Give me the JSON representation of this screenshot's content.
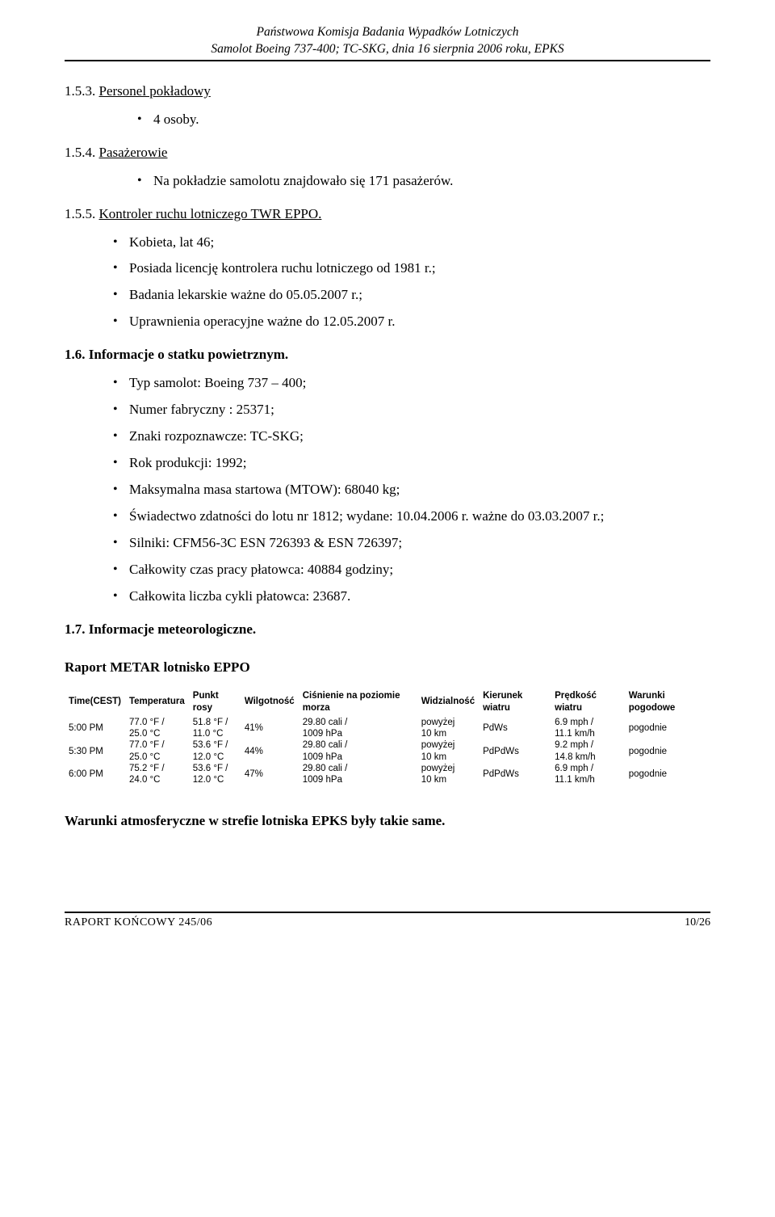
{
  "header": {
    "org": "Państwowa Komisja Badania Wypadków Lotniczych",
    "sub": "Samolot Boeing 737-400; TC-SKG, dnia 16 sierpnia 2006 roku, EPKS"
  },
  "sections": {
    "s153": {
      "num": "1.5.3.",
      "title": "Personel pokładowy",
      "items": [
        "4 osoby."
      ]
    },
    "s154": {
      "num": "1.5.4.",
      "title": "Pasażerowie",
      "items": [
        "Na pokładzie samolotu znajdowało się 171 pasażerów."
      ]
    },
    "s155": {
      "num": "1.5.5.",
      "title": "Kontroler ruchu lotniczego TWR EPPO.",
      "items": [
        "Kobieta, lat 46;",
        "Posiada licencję kontrolera ruchu lotniczego od 1981 r.;",
        "Badania lekarskie ważne do 05.05.2007 r.;",
        "Uprawnienia operacyjne ważne do 12.05.2007 r."
      ]
    },
    "s16": {
      "num": "1.6.",
      "title": "Informacje o statku powietrznym.",
      "items": [
        "Typ samolot: Boeing 737 – 400;",
        "Numer fabryczny : 25371;",
        "Znaki rozpoznawcze: TC-SKG;",
        "Rok produkcji: 1992;",
        "Maksymalna masa startowa (MTOW): 68040 kg;",
        "Świadectwo zdatności do lotu nr 1812; wydane: 10.04.2006 r. ważne do 03.03.2007 r.;",
        "Silniki: CFM56-3C ESN 726393 & ESN 726397;",
        "Całkowity czas pracy płatowca: 40884 godziny;",
        "Całkowita liczba cykli płatowca: 23687."
      ]
    },
    "s17": {
      "num": "1.7.",
      "title": "Informacje meteorologiczne."
    }
  },
  "metar": {
    "title": "Raport METAR lotnisko EPPO",
    "columns": [
      "Time(CEST)",
      "Temperatura",
      "Punkt rosy",
      "Wilgotność",
      "Ciśnienie na poziomie morza",
      "Widzialność",
      "Kierunek wiatru",
      "Prędkość wiatru",
      "Warunki pogodowe"
    ],
    "rows": [
      {
        "time": "5:00 PM",
        "temp": "77.0 °F / 25.0 °C",
        "dew": "51.8 °F / 11.0 °C",
        "hum": "41%",
        "pres": "29.80 cali / 1009 hPa",
        "vis": "powyżej 10 km",
        "dir": "PdWs",
        "spd": "6.9 mph / 11.1 km/h",
        "cond": "pogodnie"
      },
      {
        "time": "5:30 PM",
        "temp": "77.0 °F / 25.0 °C",
        "dew": "53.6 °F / 12.0 °C",
        "hum": "44%",
        "pres": "29.80 cali / 1009 hPa",
        "vis": "powyżej 10 km",
        "dir": "PdPdWs",
        "spd": "9.2 mph / 14.8 km/h",
        "cond": "pogodnie"
      },
      {
        "time": "6:00 PM",
        "temp": "75.2 °F / 24.0 °C",
        "dew": "53.6 °F / 12.0 °C",
        "hum": "47%",
        "pres": "29.80 cali / 1009 hPa",
        "vis": "powyżej 10 km",
        "dir": "PdPdWs",
        "spd": "6.9 mph / 11.1 km/h",
        "cond": "pogodnie"
      }
    ]
  },
  "conditions_line": "Warunki atmosferyczne w strefie lotniska EPKS były takie same.",
  "footer": {
    "left": "RAPORT KOŃCOWY 245/06",
    "right": "10/26"
  }
}
